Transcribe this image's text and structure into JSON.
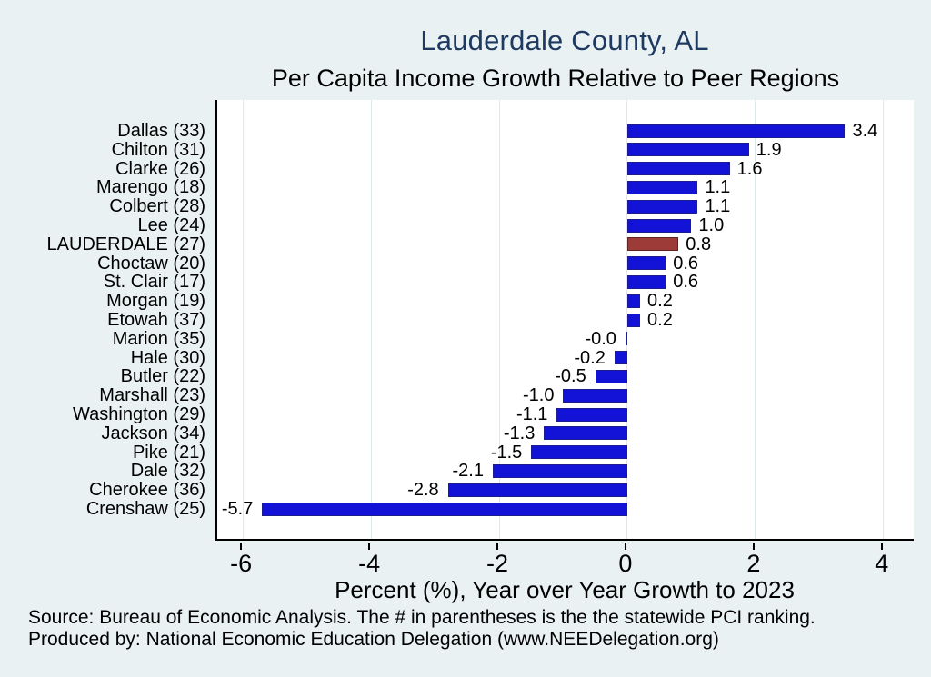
{
  "title": "Lauderdale County, AL",
  "subtitle": "Per Capita Income Growth Relative to Peer Regions",
  "x_axis_title": "Percent (%), Year over Year Growth to 2023",
  "footer": {
    "line1": "Source: Bureau of Economic Analysis. The # in parentheses is the the statewide PCI ranking.",
    "line2": "Produced by: National Economic Education Delegation (www.NEEDelegation.org)"
  },
  "colors": {
    "background": "#e9f1f2",
    "plot_background": "#ffffff",
    "bar": "#1213d6",
    "highlight_bar": "#9d3b39",
    "title_text": "#1f3a60",
    "gridline": "#dde9eb",
    "axis": "#000000"
  },
  "chart_data": {
    "type": "bar",
    "orientation": "horizontal",
    "title": "Lauderdale County, AL",
    "subtitle": "Per Capita Income Growth Relative to Peer Regions",
    "xlabel": "Percent (%), Year over Year Growth to 2023",
    "ylabel": "",
    "xlim": [
      -6.4,
      4.5
    ],
    "xticks": [
      -6,
      -4,
      -2,
      0,
      2,
      4
    ],
    "grid": true,
    "legend": "none",
    "categories": [
      "Dallas (33)",
      "Chilton (31)",
      "Clarke (26)",
      "Marengo (18)",
      "Colbert (28)",
      "Lee (24)",
      "LAUDERDALE (27)",
      "Choctaw (20)",
      "St. Clair (17)",
      "Morgan (19)",
      "Etowah (37)",
      "Marion (35)",
      "Hale (30)",
      "Butler (22)",
      "Marshall (23)",
      "Washington (29)",
      "Jackson (34)",
      "Pike (21)",
      "Dale (32)",
      "Cherokee (36)",
      "Crenshaw (25)"
    ],
    "values": [
      3.4,
      1.9,
      1.6,
      1.1,
      1.1,
      1.0,
      0.8,
      0.6,
      0.6,
      0.2,
      0.2,
      -0.0,
      -0.2,
      -0.5,
      -1.0,
      -1.1,
      -1.3,
      -1.5,
      -2.1,
      -2.8,
      -5.7
    ],
    "value_labels": [
      "3.4",
      "1.9",
      "1.6",
      "1.1",
      "1.1",
      "1.0",
      "0.8",
      "0.6",
      "0.6",
      "0.2",
      "0.2",
      "-0.0",
      "-0.2",
      "-0.5",
      "-1.0",
      "-1.1",
      "-1.3",
      "-1.5",
      "-2.1",
      "-2.8",
      "-5.7"
    ],
    "highlight_category": "LAUDERDALE (27)",
    "highlight_index": 6
  }
}
